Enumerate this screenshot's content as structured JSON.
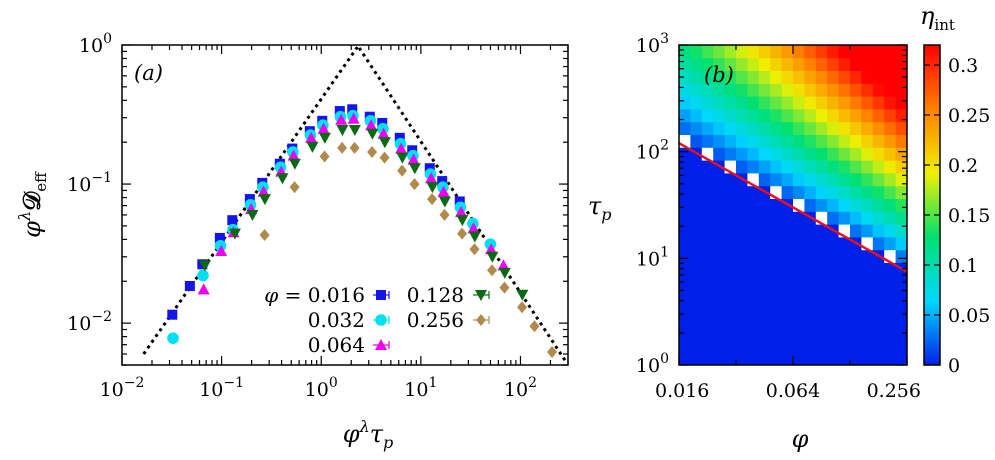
{
  "chart_data": [
    {
      "type": "scatter",
      "panel_label": "(a)",
      "xlabel": "φ^λ τ_p",
      "ylabel": "φ^λ D_eff",
      "xscale": "log",
      "yscale": "log",
      "xlim": [
        0.01,
        300
      ],
      "ylim": [
        0.005,
        1
      ],
      "xticks": [
        {
          "value": 0.01,
          "base": "10",
          "exp": "−2"
        },
        {
          "value": 0.1,
          "base": "10",
          "exp": "−1"
        },
        {
          "value": 1,
          "base": "10",
          "exp": "0"
        },
        {
          "value": 10,
          "base": "10",
          "exp": "1"
        },
        {
          "value": 100,
          "base": "10",
          "exp": "2"
        }
      ],
      "yticks": [
        {
          "value": 0.01,
          "base": "10",
          "exp": "−2"
        },
        {
          "value": 0.1,
          "base": "10",
          "exp": "−1"
        },
        {
          "value": 1,
          "base": "10",
          "exp": "0"
        }
      ],
      "legend": {
        "prefix": "φ = ",
        "placement": "bottom-center"
      },
      "series": [
        {
          "name": "0.016",
          "marker": "square",
          "color": "#1515e8",
          "points": [
            [
              0.032,
              0.0115
            ],
            [
              0.048,
              0.0185
            ],
            [
              0.064,
              0.0265
            ],
            [
              0.096,
              0.041
            ],
            [
              0.128,
              0.055
            ],
            [
              0.192,
              0.078
            ],
            [
              0.256,
              0.102
            ],
            [
              0.384,
              0.14
            ],
            [
              0.512,
              0.18
            ],
            [
              0.768,
              0.24
            ],
            [
              1.024,
              0.285
            ],
            [
              1.536,
              0.335
            ],
            [
              2.048,
              0.345
            ],
            [
              3.072,
              0.305
            ],
            [
              4.096,
              0.275
            ],
            [
              6.144,
              0.215
            ],
            [
              8.192,
              0.175
            ],
            [
              12.29,
              0.13
            ],
            [
              16.38,
              0.105
            ],
            [
              24.58,
              0.075
            ]
          ]
        },
        {
          "name": "0.032",
          "marker": "circle",
          "color": "#00e0f0",
          "points": [
            [
              0.0325,
              0.0078
            ],
            [
              0.065,
              0.022
            ],
            [
              0.0975,
              0.036
            ],
            [
              0.13,
              0.047
            ],
            [
              0.195,
              0.071
            ],
            [
              0.26,
              0.095
            ],
            [
              0.39,
              0.132
            ],
            [
              0.52,
              0.17
            ],
            [
              0.78,
              0.225
            ],
            [
              1.04,
              0.265
            ],
            [
              1.56,
              0.305
            ],
            [
              2.08,
              0.31
            ],
            [
              3.12,
              0.285
            ],
            [
              4.16,
              0.25
            ],
            [
              6.24,
              0.195
            ],
            [
              8.32,
              0.16
            ],
            [
              12.48,
              0.118
            ],
            [
              16.64,
              0.095
            ],
            [
              24.96,
              0.068
            ],
            [
              33.28,
              0.052
            ],
            [
              49.92,
              0.037
            ]
          ]
        },
        {
          "name": "0.064",
          "marker": "triangle-up",
          "color": "#f000f0",
          "points": [
            [
              0.066,
              0.0175
            ],
            [
              0.099,
              0.033
            ],
            [
              0.132,
              0.045
            ],
            [
              0.198,
              0.066
            ],
            [
              0.264,
              0.088
            ],
            [
              0.396,
              0.123
            ],
            [
              0.528,
              0.16
            ],
            [
              0.792,
              0.215
            ],
            [
              1.056,
              0.25
            ],
            [
              1.584,
              0.29
            ],
            [
              2.112,
              0.295
            ],
            [
              3.168,
              0.265
            ],
            [
              4.224,
              0.23
            ],
            [
              6.336,
              0.18
            ],
            [
              8.448,
              0.15
            ],
            [
              12.67,
              0.11
            ],
            [
              16.9,
              0.088
            ],
            [
              25.34,
              0.063
            ],
            [
              33.79,
              0.048
            ],
            [
              50.69,
              0.034
            ],
            [
              67.58,
              0.026
            ]
          ]
        },
        {
          "name": "0.128",
          "marker": "triangle-down",
          "color": "#0a6a14",
          "points": [
            [
              0.068,
              0.026
            ],
            [
              0.136,
              0.044
            ],
            [
              0.204,
              0.06
            ],
            [
              0.272,
              0.078
            ],
            [
              0.408,
              0.11
            ],
            [
              0.544,
              0.14
            ],
            [
              0.816,
              0.185
            ],
            [
              1.088,
              0.215
            ],
            [
              1.632,
              0.245
            ],
            [
              2.176,
              0.245
            ],
            [
              3.264,
              0.23
            ],
            [
              4.352,
              0.2
            ],
            [
              6.528,
              0.155
            ],
            [
              8.704,
              0.13
            ],
            [
              13.06,
              0.095
            ],
            [
              17.41,
              0.075
            ],
            [
              26.11,
              0.055
            ],
            [
              34.82,
              0.042
            ],
            [
              52.22,
              0.03
            ],
            [
              69.63,
              0.023
            ],
            [
              104.4,
              0.016
            ]
          ]
        },
        {
          "name": "0.256",
          "marker": "diamond",
          "color": "#b08a4a",
          "points": [
            [
              0.27,
              0.043
            ],
            [
              0.54,
              0.095
            ],
            [
              1.08,
              0.158
            ],
            [
              1.62,
              0.182
            ],
            [
              2.16,
              0.182
            ],
            [
              3.24,
              0.17
            ],
            [
              4.32,
              0.155
            ],
            [
              6.48,
              0.125
            ],
            [
              8.64,
              0.1
            ],
            [
              12.96,
              0.078
            ],
            [
              17.28,
              0.06
            ],
            [
              25.92,
              0.044
            ],
            [
              34.56,
              0.034
            ],
            [
              51.84,
              0.024
            ],
            [
              69.12,
              0.018
            ],
            [
              103.7,
              0.013
            ],
            [
              138.2,
              0.0095
            ],
            [
              207.4,
              0.0062
            ]
          ]
        }
      ],
      "guide_lines": [
        {
          "style": "dotted",
          "color": "#000000",
          "from": [
            0.0165,
            0.006
          ],
          "to": [
            2.5,
            1.05
          ]
        },
        {
          "style": "dotted",
          "color": "#000000",
          "from": [
            2.2,
            1.05
          ],
          "to": [
            290,
            0.0052
          ]
        }
      ]
    },
    {
      "type": "heatmap",
      "panel_label": "(b)",
      "xlabel": "φ",
      "ylabel": "τ_p",
      "xscale": "log",
      "yscale": "log",
      "xlim": [
        0.016,
        0.256
      ],
      "ylim": [
        1,
        1000
      ],
      "xticks": [
        "0.016",
        "0.064",
        "0.256"
      ],
      "yticks": [
        {
          "value": 1,
          "base": "10",
          "exp": "0"
        },
        {
          "value": 10,
          "base": "10",
          "exp": "1"
        },
        {
          "value": 100,
          "base": "10",
          "exp": "2"
        },
        {
          "value": 1000,
          "base": "10",
          "exp": "3"
        }
      ],
      "colorbar": {
        "label": "η_int",
        "range": [
          0,
          0.32
        ],
        "ticks": [
          "0",
          "0.05",
          "0.1",
          "0.15",
          "0.2",
          "0.25",
          "0.3"
        ],
        "colormap": [
          "#0020e8",
          "#00d8ff",
          "#00e070",
          "#f0f000",
          "#ff8000",
          "#ff0000"
        ]
      },
      "grid_size": [
        20,
        25
      ],
      "threshold_line": {
        "color": "#e81020",
        "from": [
          0.016,
          120
        ],
        "to": [
          0.256,
          7.5
        ]
      }
    }
  ]
}
